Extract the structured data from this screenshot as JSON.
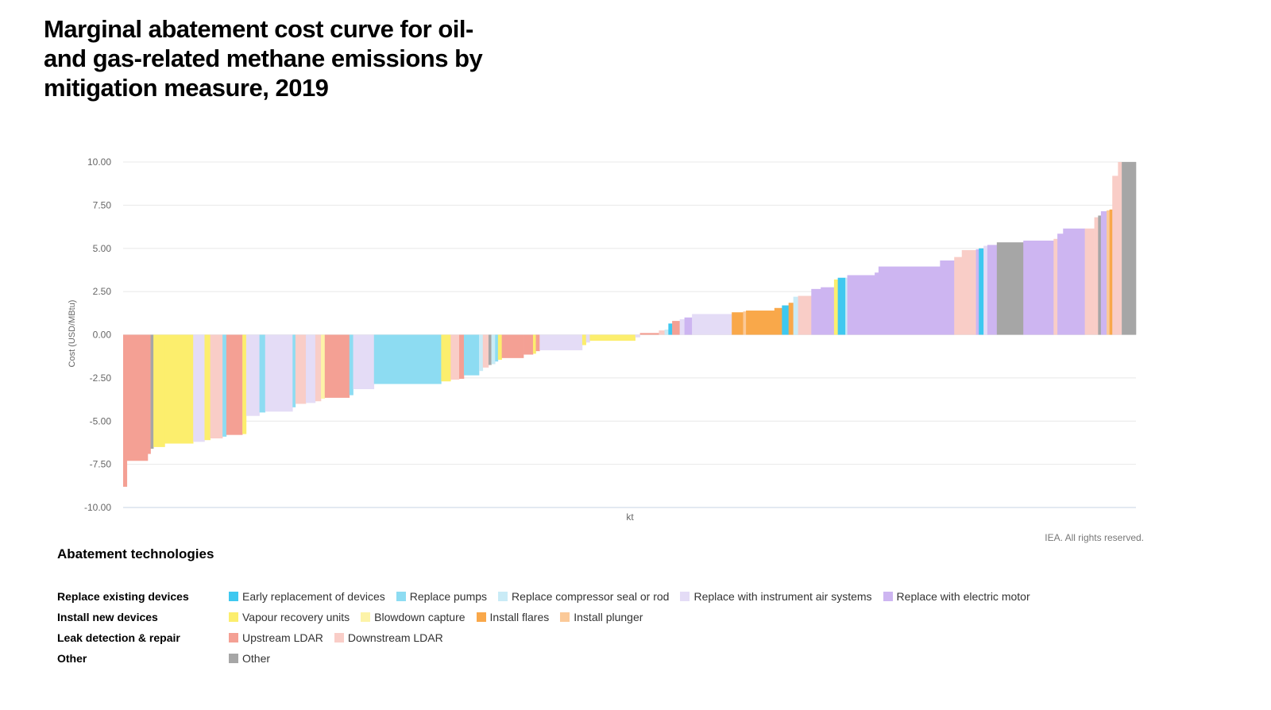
{
  "title_lines": [
    "Marginal abatement cost curve for oil-",
    "and gas-related methane emissions by",
    "mitigation measure, 2019"
  ],
  "credit": "IEA. All rights reserved.",
  "legend_title": "Abatement technologies",
  "legend_groups": [
    {
      "label": "Replace existing devices",
      "items": [
        {
          "label": "Early replacement of devices",
          "color": "#3ec8f0"
        },
        {
          "label": "Replace pumps",
          "color": "#8ddcf2"
        },
        {
          "label": "Replace compressor seal or rod",
          "color": "#c9ebf6"
        },
        {
          "label": "Replace with instrument air systems",
          "color": "#e4dcf6"
        },
        {
          "label": "Replace with electric motor",
          "color": "#cdb5f1"
        }
      ]
    },
    {
      "label": "Install new devices",
      "items": [
        {
          "label": "Vapour recovery units",
          "color": "#fcee6d"
        },
        {
          "label": "Blowdown capture",
          "color": "#fdf3a8"
        },
        {
          "label": "Install flares",
          "color": "#f9a84a"
        },
        {
          "label": "Install plunger",
          "color": "#fbc998"
        }
      ]
    },
    {
      "label": "Leak detection & repair",
      "items": [
        {
          "label": "Upstream LDAR",
          "color": "#f4a094"
        },
        {
          "label": "Downstream LDAR",
          "color": "#f9cdc7"
        }
      ]
    },
    {
      "label": "Other",
      "items": [
        {
          "label": "Other",
          "color": "#a6a6a6"
        }
      ]
    }
  ],
  "chart_data": {
    "type": "bar",
    "title": "Marginal abatement cost curve for oil- and gas-related methane emissions by mitigation measure, 2019",
    "xlabel": "kt",
    "ylabel": "Cost (USD/MBtu)",
    "ylim": [
      -10,
      10
    ],
    "yticks": [
      "10.00",
      "7.50",
      "5.00",
      "2.50",
      "0.00",
      "-2.50",
      "-5.00",
      "-7.50",
      "-10.00"
    ],
    "grid": true,
    "colors": {
      "Early replacement of devices": "#3ec8f0",
      "Replace pumps": "#8ddcf2",
      "Replace compressor seal or rod": "#c9ebf6",
      "Replace with instrument air systems": "#e4dcf6",
      "Replace with electric motor": "#cdb5f1",
      "Vapour recovery units": "#fcee6d",
      "Blowdown capture": "#fdf3a8",
      "Install flares": "#f9a84a",
      "Install plunger": "#fbc998",
      "Upstream LDAR": "#f4a094",
      "Downstream LDAR": "#f9cdc7",
      "Other": "#a6a6a6"
    },
    "bars": [
      {
        "w": 0.4,
        "v": -8.8,
        "cat": "Upstream LDAR"
      },
      {
        "w": 2.2,
        "v": -7.3,
        "cat": "Upstream LDAR"
      },
      {
        "w": 0.3,
        "v": -6.9,
        "cat": "Upstream LDAR"
      },
      {
        "w": 0.3,
        "v": -6.6,
        "cat": "Other"
      },
      {
        "w": 1.2,
        "v": -6.5,
        "cat": "Vapour recovery units"
      },
      {
        "w": 3.0,
        "v": -6.3,
        "cat": "Vapour recovery units"
      },
      {
        "w": 1.2,
        "v": -6.2,
        "cat": "Replace with instrument air systems"
      },
      {
        "w": 0.6,
        "v": -6.1,
        "cat": "Vapour recovery units"
      },
      {
        "w": 1.3,
        "v": -6.0,
        "cat": "Downstream LDAR"
      },
      {
        "w": 0.4,
        "v": -5.9,
        "cat": "Replace pumps"
      },
      {
        "w": 1.7,
        "v": -5.8,
        "cat": "Upstream LDAR"
      },
      {
        "w": 0.4,
        "v": -5.75,
        "cat": "Vapour recovery units"
      },
      {
        "w": 1.4,
        "v": -4.7,
        "cat": "Replace with instrument air systems"
      },
      {
        "w": 0.6,
        "v": -4.5,
        "cat": "Replace pumps"
      },
      {
        "w": 2.9,
        "v": -4.45,
        "cat": "Replace with instrument air systems"
      },
      {
        "w": 0.3,
        "v": -4.2,
        "cat": "Replace pumps"
      },
      {
        "w": 1.1,
        "v": -4.0,
        "cat": "Downstream LDAR"
      },
      {
        "w": 1.0,
        "v": -3.95,
        "cat": "Replace with instrument air systems"
      },
      {
        "w": 0.6,
        "v": -3.85,
        "cat": "Downstream LDAR"
      },
      {
        "w": 0.4,
        "v": -3.7,
        "cat": "Blowdown capture"
      },
      {
        "w": 2.6,
        "v": -3.65,
        "cat": "Upstream LDAR"
      },
      {
        "w": 0.4,
        "v": -3.5,
        "cat": "Replace pumps"
      },
      {
        "w": 2.2,
        "v": -3.15,
        "cat": "Replace with instrument air systems"
      },
      {
        "w": 7.1,
        "v": -2.85,
        "cat": "Replace pumps"
      },
      {
        "w": 1.0,
        "v": -2.7,
        "cat": "Vapour recovery units"
      },
      {
        "w": 0.9,
        "v": -2.6,
        "cat": "Downstream LDAR"
      },
      {
        "w": 0.5,
        "v": -2.55,
        "cat": "Upstream LDAR"
      },
      {
        "w": 1.6,
        "v": -2.35,
        "cat": "Replace pumps"
      },
      {
        "w": 0.4,
        "v": -2.1,
        "cat": "Replace compressor seal or rod"
      },
      {
        "w": 0.6,
        "v": -1.9,
        "cat": "Downstream LDAR"
      },
      {
        "w": 0.3,
        "v": -1.75,
        "cat": "Other"
      },
      {
        "w": 0.4,
        "v": -1.7,
        "cat": "Replace compressor seal or rod"
      },
      {
        "w": 0.3,
        "v": -1.55,
        "cat": "Replace pumps"
      },
      {
        "w": 0.4,
        "v": -1.45,
        "cat": "Vapour recovery units"
      },
      {
        "w": 2.3,
        "v": -1.35,
        "cat": "Upstream LDAR"
      },
      {
        "w": 1.0,
        "v": -1.15,
        "cat": "Upstream LDAR"
      },
      {
        "w": 0.3,
        "v": -1.1,
        "cat": "Vapour recovery units"
      },
      {
        "w": 0.4,
        "v": -0.95,
        "cat": "Upstream LDAR"
      },
      {
        "w": 4.5,
        "v": -0.9,
        "cat": "Replace with instrument air systems"
      },
      {
        "w": 0.4,
        "v": -0.6,
        "cat": "Vapour recovery units"
      },
      {
        "w": 0.4,
        "v": -0.45,
        "cat": "Replace with instrument air systems"
      },
      {
        "w": 4.8,
        "v": -0.35,
        "cat": "Vapour recovery units"
      },
      {
        "w": 0.5,
        "v": -0.15,
        "cat": "Replace with instrument air systems"
      },
      {
        "w": 2.0,
        "v": 0.1,
        "cat": "Upstream LDAR"
      },
      {
        "w": 0.6,
        "v": 0.25,
        "cat": "Downstream LDAR"
      },
      {
        "w": 0.4,
        "v": 0.3,
        "cat": "Replace compressor seal or rod"
      },
      {
        "w": 0.4,
        "v": 0.65,
        "cat": "Early replacement of devices"
      },
      {
        "w": 0.8,
        "v": 0.8,
        "cat": "Upstream LDAR"
      },
      {
        "w": 0.5,
        "v": 0.9,
        "cat": "Replace with instrument air systems"
      },
      {
        "w": 0.8,
        "v": 1.0,
        "cat": "Replace with electric motor"
      },
      {
        "w": 4.2,
        "v": 1.2,
        "cat": "Replace with instrument air systems"
      },
      {
        "w": 1.2,
        "v": 1.3,
        "cat": "Install flares"
      },
      {
        "w": 0.3,
        "v": 1.35,
        "cat": "Install plunger"
      },
      {
        "w": 3.0,
        "v": 1.4,
        "cat": "Install flares"
      },
      {
        "w": 0.8,
        "v": 1.55,
        "cat": "Install flares"
      },
      {
        "w": 0.7,
        "v": 1.7,
        "cat": "Early replacement of devices"
      },
      {
        "w": 0.5,
        "v": 1.85,
        "cat": "Install flares"
      },
      {
        "w": 0.5,
        "v": 2.2,
        "cat": "Replace compressor seal or rod"
      },
      {
        "w": 1.4,
        "v": 2.25,
        "cat": "Downstream LDAR"
      },
      {
        "w": 1.0,
        "v": 2.65,
        "cat": "Replace with electric motor"
      },
      {
        "w": 1.4,
        "v": 2.75,
        "cat": "Replace with electric motor"
      },
      {
        "w": 0.4,
        "v": 3.2,
        "cat": "Vapour recovery units"
      },
      {
        "w": 0.8,
        "v": 3.3,
        "cat": "Early replacement of devices"
      },
      {
        "w": 0.2,
        "v": 3.3,
        "cat": "Replace compressor seal or rod"
      },
      {
        "w": 2.9,
        "v": 3.45,
        "cat": "Replace with electric motor"
      },
      {
        "w": 0.4,
        "v": 3.6,
        "cat": "Replace with electric motor"
      },
      {
        "w": 6.5,
        "v": 3.95,
        "cat": "Replace with electric motor"
      },
      {
        "w": 1.5,
        "v": 4.3,
        "cat": "Replace with electric motor"
      },
      {
        "w": 0.8,
        "v": 4.5,
        "cat": "Downstream LDAR"
      },
      {
        "w": 1.5,
        "v": 4.9,
        "cat": "Downstream LDAR"
      },
      {
        "w": 0.3,
        "v": 4.95,
        "cat": "Replace with electric motor"
      },
      {
        "w": 0.5,
        "v": 5.0,
        "cat": "Early replacement of devices"
      },
      {
        "w": 0.4,
        "v": 5.15,
        "cat": "Replace with instrument air systems"
      },
      {
        "w": 1.0,
        "v": 5.2,
        "cat": "Replace with electric motor"
      },
      {
        "w": 2.8,
        "v": 5.35,
        "cat": "Other"
      },
      {
        "w": 3.2,
        "v": 5.45,
        "cat": "Replace with electric motor"
      },
      {
        "w": 0.4,
        "v": 5.55,
        "cat": "Downstream LDAR"
      },
      {
        "w": 0.6,
        "v": 5.85,
        "cat": "Replace with electric motor"
      },
      {
        "w": 2.3,
        "v": 6.15,
        "cat": "Replace with electric motor"
      },
      {
        "w": 1.0,
        "v": 6.15,
        "cat": "Downstream LDAR"
      },
      {
        "w": 0.4,
        "v": 6.8,
        "cat": "Downstream LDAR"
      },
      {
        "w": 0.3,
        "v": 6.9,
        "cat": "Other"
      },
      {
        "w": 0.6,
        "v": 7.15,
        "cat": "Replace with electric motor"
      },
      {
        "w": 0.3,
        "v": 7.2,
        "cat": "Install plunger"
      },
      {
        "w": 0.3,
        "v": 7.25,
        "cat": "Install flares"
      },
      {
        "w": 0.6,
        "v": 9.2,
        "cat": "Downstream LDAR"
      },
      {
        "w": 0.4,
        "v": 10.0,
        "cat": "Downstream LDAR"
      },
      {
        "w": 1.5,
        "v": 10.0,
        "cat": "Other"
      }
    ]
  }
}
